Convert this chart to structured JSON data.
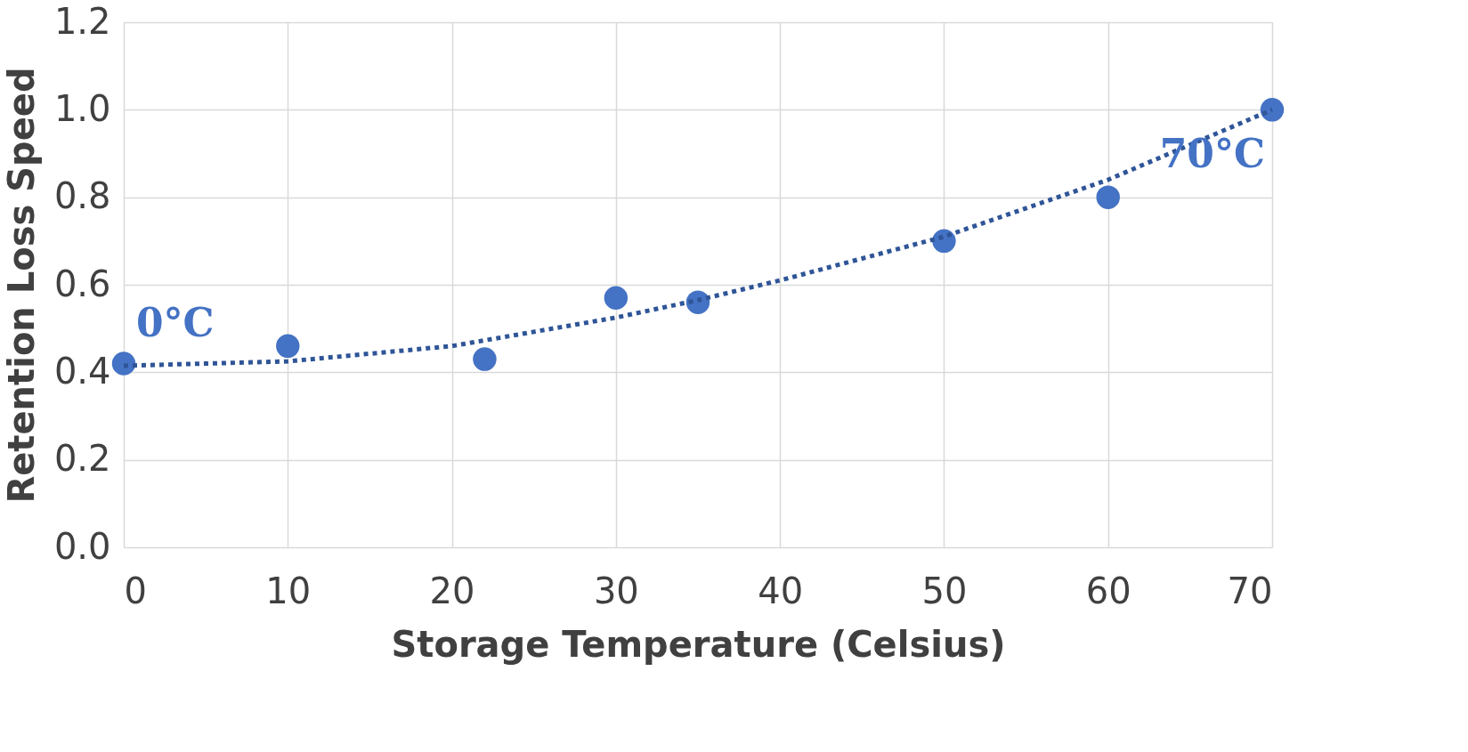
{
  "chart_data": {
    "type": "scatter",
    "xlabel": "Storage Temperature (Celsius)",
    "ylabel": "Retention Loss Speed",
    "xlim": [
      0,
      70
    ],
    "xticks": [
      0,
      10,
      20,
      30,
      40,
      50,
      60,
      70
    ],
    "ylim": [
      0,
      1.2
    ],
    "yticks": [
      {
        "value": 0,
        "label": "0.0"
      },
      0.2,
      0.4,
      0.6,
      0.8,
      {
        "value": 1,
        "label": "1.0"
      },
      1.2
    ],
    "grid": true,
    "legend": false,
    "marker": "circle",
    "series": [
      {
        "color": "#4472c4",
        "x": [
          0,
          10,
          22,
          30,
          35,
          50,
          60,
          70
        ],
        "values": [
          0.42,
          0.46,
          0.43,
          0.57,
          0.56,
          0.7,
          0.8,
          1.0
        ]
      },
      {
        "type": "line",
        "color": "#2f5597",
        "line_style": "dotted",
        "marker": "none",
        "x": [
          0,
          10,
          20,
          30,
          35,
          40,
          50,
          60,
          70
        ],
        "values": [
          0.415,
          0.425,
          0.46,
          0.525,
          0.565,
          0.61,
          0.71,
          0.84,
          1.0
        ]
      }
    ],
    "annotations": [
      {
        "text": "0°C",
        "x": 0,
        "y": 0.42
      },
      {
        "text": "70°C",
        "x": 70,
        "y": 1.0
      }
    ]
  }
}
